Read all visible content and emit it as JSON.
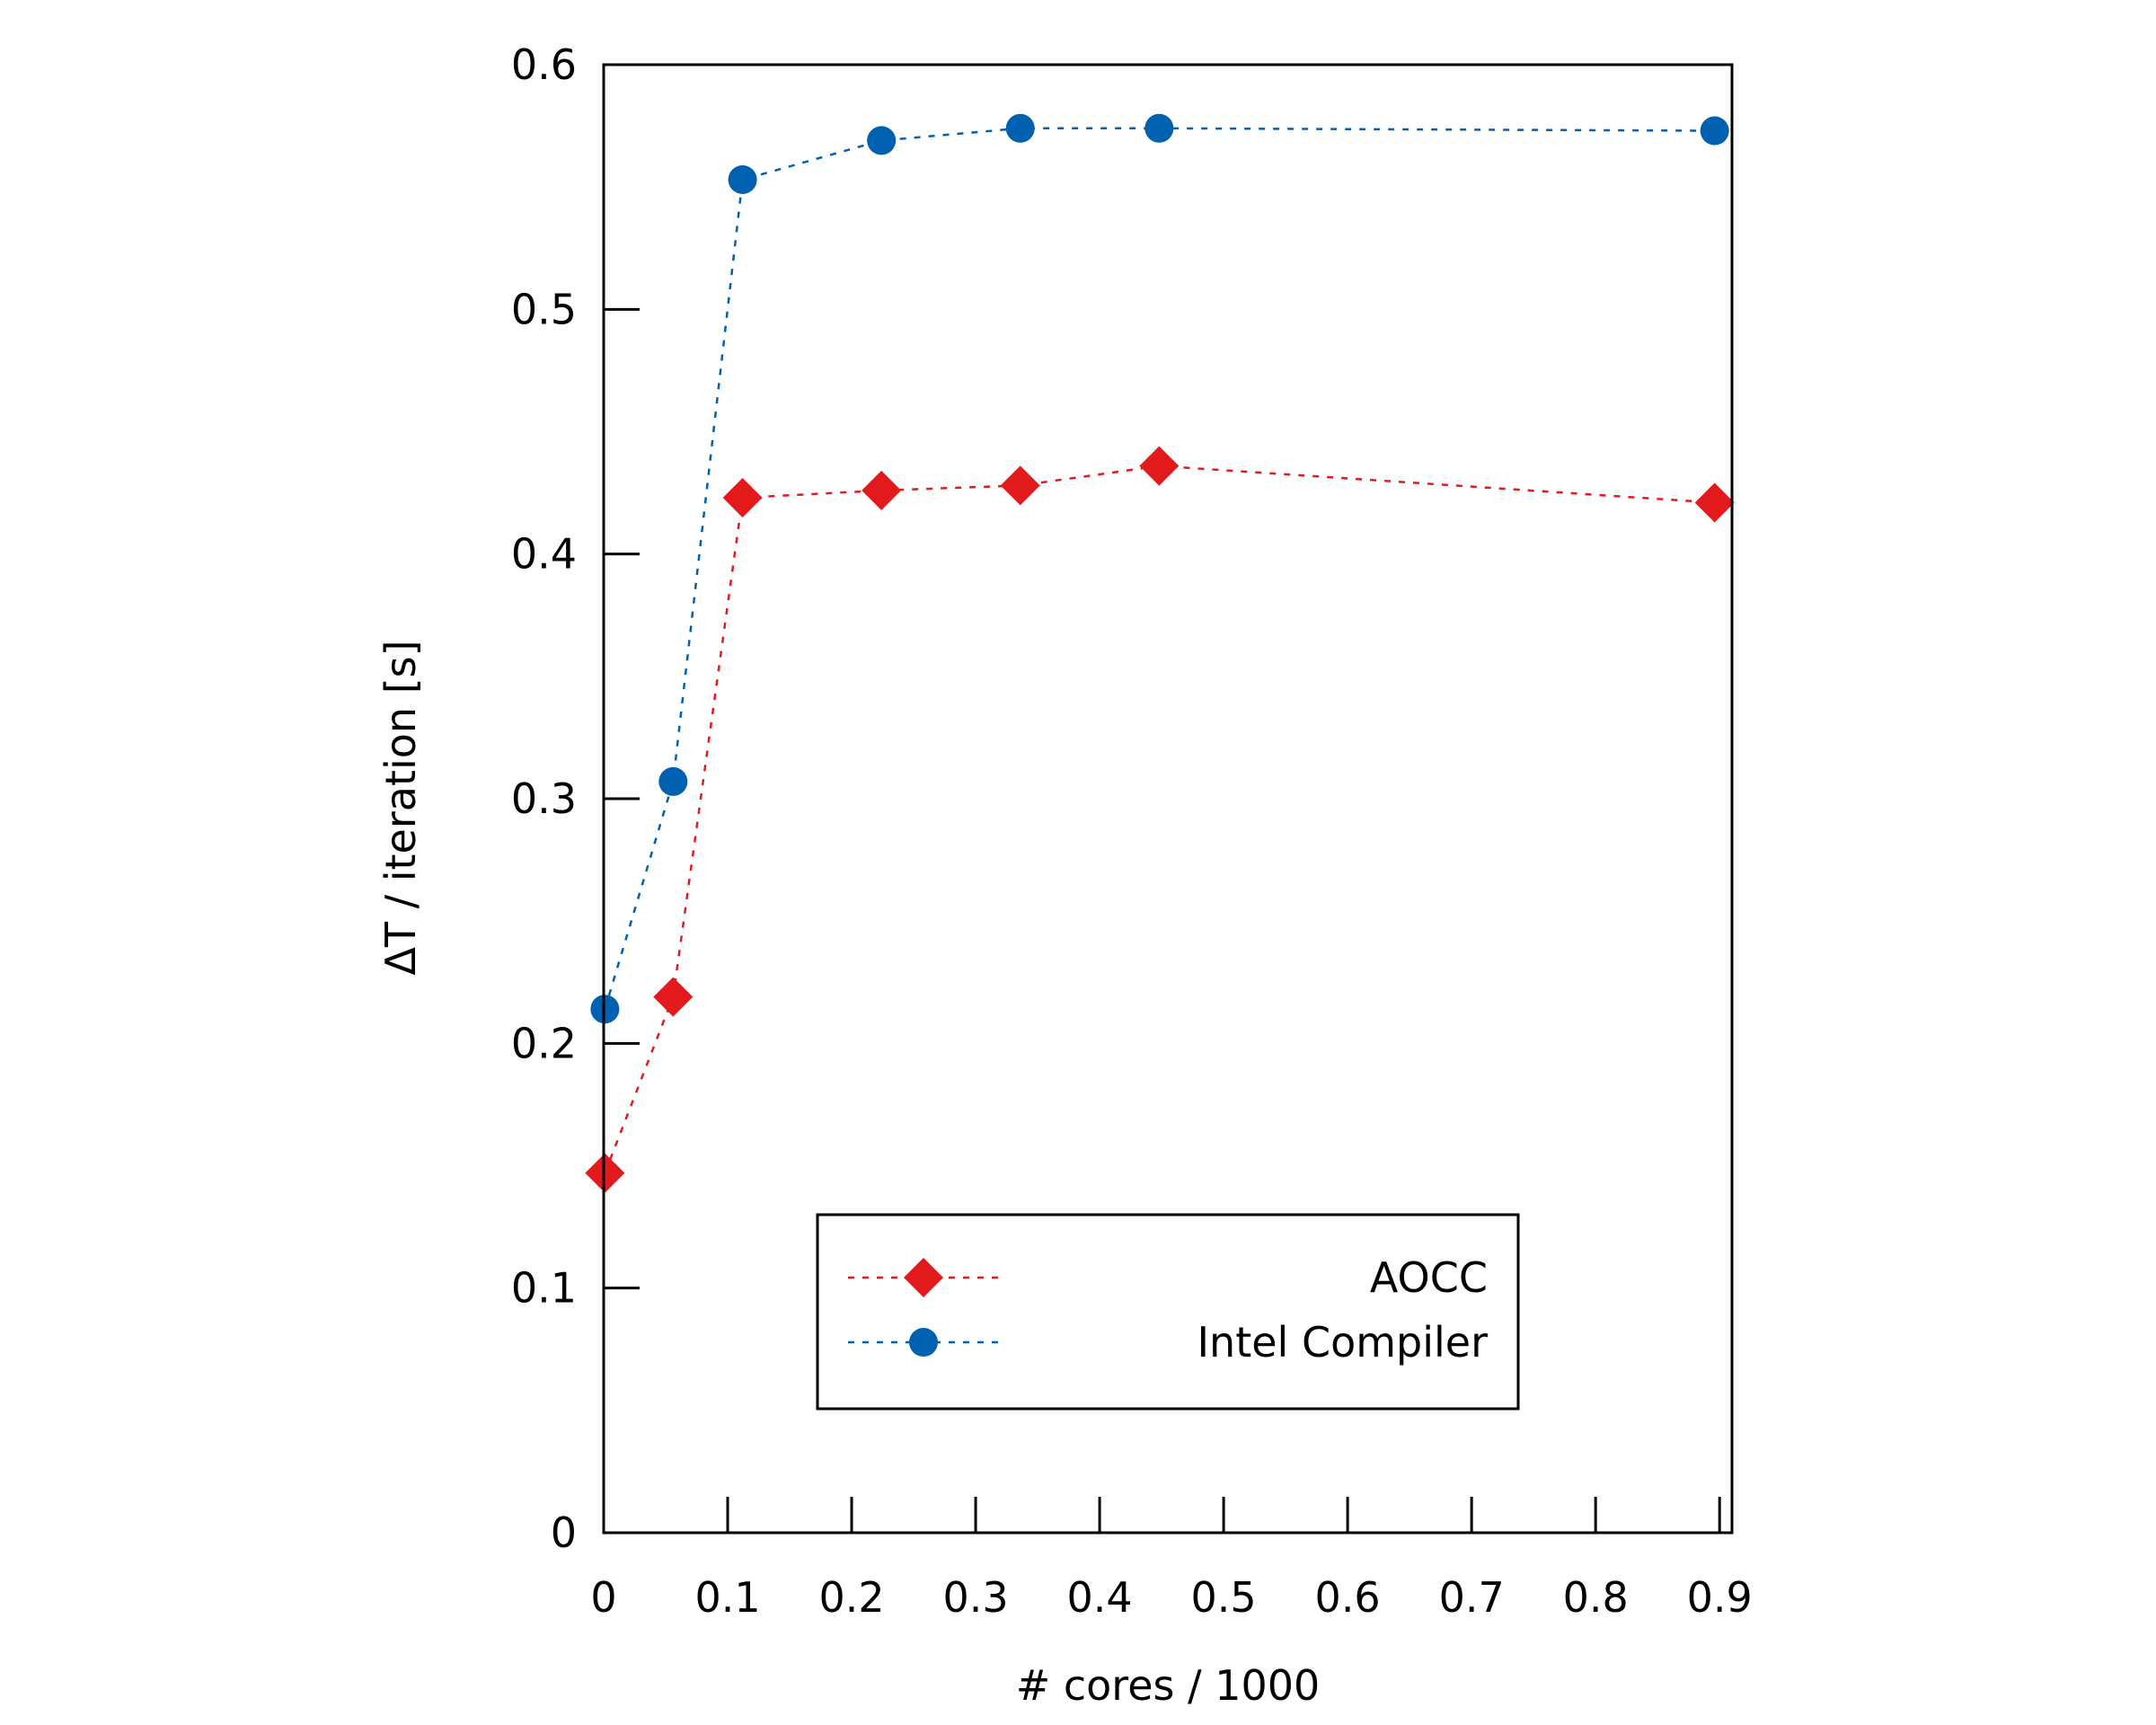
{
  "chart_data": {
    "type": "line",
    "xlabel": "# cores / 1000",
    "ylabel": "ΔT / iteration [s]",
    "xlim": [
      0,
      0.91
    ],
    "ylim": [
      0,
      0.6
    ],
    "xticks": [
      0,
      0.1,
      0.2,
      0.3,
      0.4,
      0.5,
      0.6,
      0.7,
      0.8,
      0.9
    ],
    "xtick_labels": [
      "0",
      "0.1",
      "0.2",
      "0.3",
      "0.4",
      "0.5",
      "0.6",
      "0.7",
      "0.8",
      "0.9"
    ],
    "yticks": [
      0,
      0.1,
      0.2,
      0.3,
      0.4,
      0.5,
      0.6
    ],
    "ytick_labels": [
      "0",
      "0.1",
      "0.2",
      "0.3",
      "0.4",
      "0.5",
      "0.6"
    ],
    "grid": false,
    "legend_position": "bottom-center",
    "series": [
      {
        "name": "AOCC",
        "color": "#e31a1c",
        "marker": "diamond",
        "line_style": "dashed",
        "x": [
          0.001,
          0.056,
          0.112,
          0.224,
          0.336,
          0.448,
          0.896
        ],
        "y": [
          0.147,
          0.219,
          0.423,
          0.426,
          0.428,
          0.436,
          0.421
        ]
      },
      {
        "name": "Intel Compiler",
        "color": "#0061b0",
        "marker": "circle",
        "line_style": "dashed",
        "x": [
          0.001,
          0.056,
          0.112,
          0.224,
          0.336,
          0.448,
          0.896
        ],
        "y": [
          0.214,
          0.307,
          0.553,
          0.569,
          0.574,
          0.574,
          0.573
        ]
      }
    ]
  }
}
